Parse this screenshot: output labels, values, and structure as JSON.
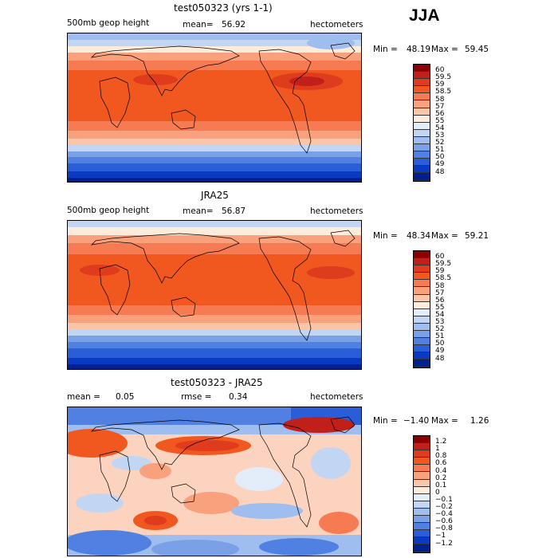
{
  "season": "JJA",
  "panels": [
    {
      "title": "test050323 (yrs 1-1)",
      "left_label": "500mb geop height",
      "mean_label": "mean=",
      "mean_value": "56.92",
      "units": "hectometers",
      "min_label": "Min =",
      "min_value": "48.19",
      "max_label": "Max =",
      "max_value": "59.45",
      "colorbar": {
        "labels": [
          "60",
          "59.5",
          "59",
          "58.5",
          "58",
          "57",
          "56",
          "55",
          "54",
          "53",
          "52",
          "51",
          "50",
          "49",
          "48"
        ],
        "colors": [
          "#8b0000",
          "#c1201a",
          "#de3c1c",
          "#f0581f",
          "#f77b52",
          "#f9a07c",
          "#fbc5a8",
          "#fdebdc",
          "#e3ecf9",
          "#c2d6f4",
          "#9fbdee",
          "#7aa1e8",
          "#4f80e2",
          "#2a5ed8",
          "#0a39c4",
          "#00208e"
        ]
      }
    },
    {
      "title": "JRA25",
      "left_label": "500mb geop height",
      "mean_label": "mean=",
      "mean_value": "56.87",
      "units": "hectometers",
      "min_label": "Min =",
      "min_value": "48.34",
      "max_label": "Max =",
      "max_value": "59.21",
      "colorbar": {
        "labels": [
          "60",
          "59.5",
          "59",
          "58.5",
          "58",
          "57",
          "56",
          "55",
          "54",
          "53",
          "52",
          "51",
          "50",
          "49",
          "48"
        ],
        "colors": [
          "#8b0000",
          "#c1201a",
          "#de3c1c",
          "#f0581f",
          "#f77b52",
          "#f9a07c",
          "#fbc5a8",
          "#fdebdc",
          "#e3ecf9",
          "#c2d6f4",
          "#9fbdee",
          "#7aa1e8",
          "#4f80e2",
          "#2a5ed8",
          "#0a39c4",
          "#00208e"
        ]
      }
    },
    {
      "title": "test050323 - JRA25",
      "left_label": "mean =",
      "left_value": "0.05",
      "mean_label": "rmse =",
      "mean_value": "0.34",
      "units": "hectometers",
      "min_label": "Min =",
      "min_value": "−1.40",
      "max_label": "Max =",
      "max_value": "1.26",
      "colorbar": {
        "labels": [
          "1.2",
          "1",
          "0.8",
          "0.6",
          "0.4",
          "0.2",
          "0.1",
          "0",
          "−0.1",
          "−0.2",
          "−0.4",
          "−0.6",
          "−0.8",
          "−1",
          "−1.2"
        ],
        "colors": [
          "#8b0000",
          "#c1201a",
          "#de3c1c",
          "#f0581f",
          "#f77b52",
          "#f9a07c",
          "#fbc5a8",
          "#fdebdc",
          "#e3ecf9",
          "#c2d6f4",
          "#9fbdee",
          "#7aa1e8",
          "#4f80e2",
          "#2a5ed8",
          "#0a39c4",
          "#00208e"
        ]
      }
    }
  ]
}
